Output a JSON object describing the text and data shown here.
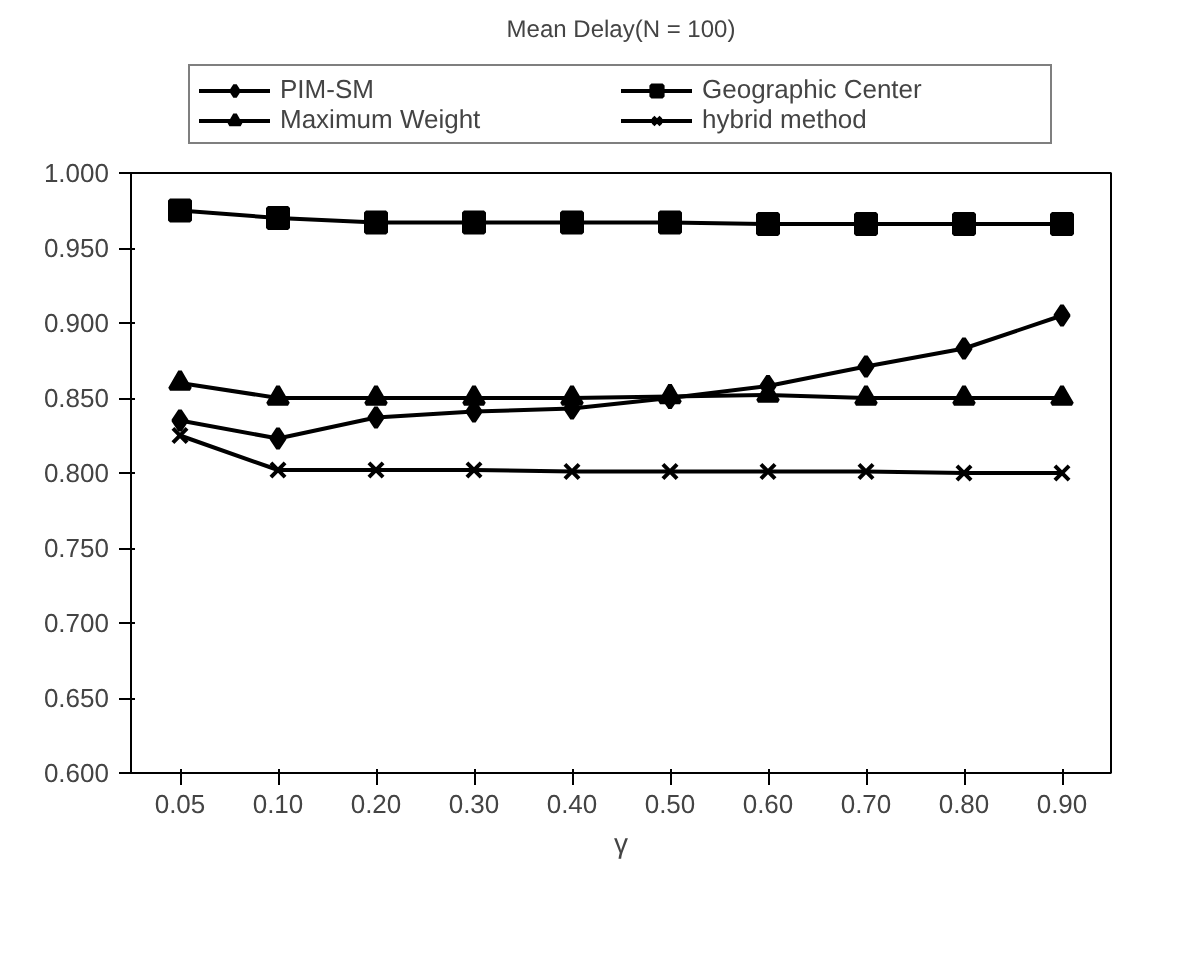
{
  "chart_data": {
    "type": "line",
    "title": "Mean Delay(N = 100)",
    "xlabel": "γ",
    "categories": [
      "0.05",
      "0.10",
      "0.20",
      "0.30",
      "0.40",
      "0.50",
      "0.60",
      "0.70",
      "0.80",
      "0.90"
    ],
    "series": [
      {
        "name": "PIM-SM",
        "color": "#000000",
        "marker": "diamond",
        "values": [
          0.835,
          0.823,
          0.837,
          0.841,
          0.843,
          0.85,
          0.858,
          0.871,
          0.883,
          0.905
        ]
      },
      {
        "name": "Geographic Center",
        "color": "#000000",
        "marker": "square",
        "values": [
          0.975,
          0.97,
          0.967,
          0.967,
          0.967,
          0.967,
          0.966,
          0.966,
          0.966,
          0.966
        ]
      },
      {
        "name": "Maximum Weight",
        "color": "#000000",
        "marker": "triangle",
        "values": [
          0.86,
          0.85,
          0.85,
          0.85,
          0.85,
          0.851,
          0.852,
          0.85,
          0.85,
          0.85
        ]
      },
      {
        "name": "hybrid method",
        "color": "#000000",
        "marker": "cross",
        "values": [
          0.825,
          0.802,
          0.802,
          0.802,
          0.801,
          0.801,
          0.801,
          0.801,
          0.8,
          0.8
        ]
      }
    ],
    "ylim": [
      0.6,
      1.0
    ],
    "yticks": [
      {
        "value": 0.6,
        "label": "0.600"
      },
      {
        "value": 0.65,
        "label": "0.650"
      },
      {
        "value": 0.7,
        "label": "0.700"
      },
      {
        "value": 0.75,
        "label": "0.750"
      },
      {
        "value": 0.8,
        "label": "0.800"
      },
      {
        "value": 0.85,
        "label": "0.850"
      },
      {
        "value": 0.9,
        "label": "0.900"
      },
      {
        "value": 0.95,
        "label": "0.950"
      },
      {
        "value": 1.0,
        "label": "1.000"
      }
    ],
    "grid": false,
    "legend": "top",
    "line_style": "solid"
  }
}
